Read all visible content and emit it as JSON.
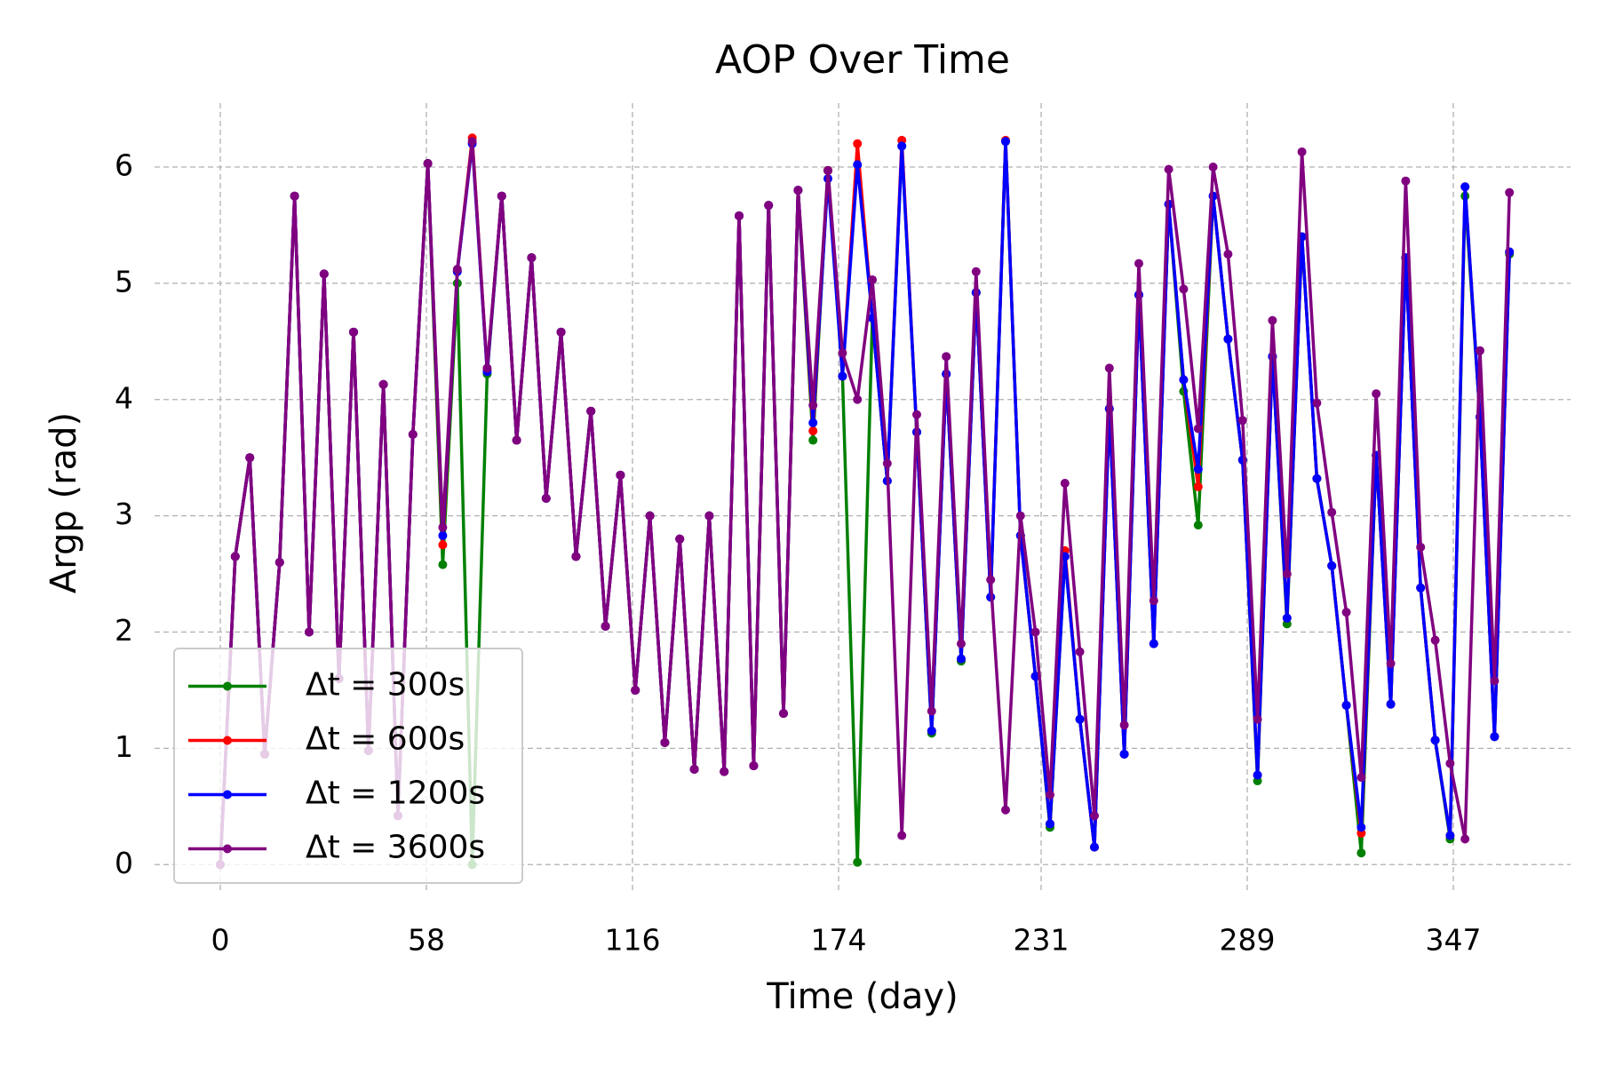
{
  "chart_data": {
    "type": "line",
    "title": "AOP Over Time",
    "xlabel": "Time (day)",
    "ylabel": "Argp (rad)",
    "x": [
      0,
      4.2,
      8.3,
      12.5,
      16.7,
      20.9,
      25.0,
      29.2,
      33.4,
      37.5,
      41.7,
      45.9,
      50.0,
      54.2,
      58.4,
      62.6,
      66.7,
      70.9,
      75.1,
      79.2,
      83.4,
      87.6,
      91.7,
      95.9,
      100.1,
      104.3,
      108.4,
      112.6,
      116.8,
      120.9,
      125.1,
      129.3,
      133.4,
      137.6,
      141.8,
      146.0,
      150.1,
      154.3,
      158.5,
      162.6,
      166.8,
      171.0,
      175.1,
      179.3,
      183.5,
      187.7,
      191.8,
      196.0,
      200.2,
      204.3,
      208.5,
      212.7,
      216.8,
      221.0,
      225.2,
      229.4,
      233.5,
      237.7,
      241.9,
      246.0,
      250.2,
      254.4,
      258.5,
      262.7,
      266.9,
      271.1,
      275.2,
      279.4,
      283.6,
      287.7,
      291.9,
      296.1,
      300.2,
      304.4,
      308.6,
      312.8,
      316.9,
      321.1,
      325.3,
      329.4,
      333.6,
      337.8,
      341.9,
      346.1,
      350.3,
      354.5,
      358.6,
      362.8
    ],
    "series": [
      {
        "name": "Δt = 300s",
        "color": "#008000",
        "values": [
          0,
          2.65,
          3.5,
          0.95,
          2.6,
          5.75,
          2.0,
          5.08,
          1.6,
          4.58,
          0.98,
          4.13,
          0.42,
          3.7,
          6.03,
          2.58,
          5.0,
          0.0,
          4.22,
          5.75,
          3.65,
          5.22,
          3.15,
          4.58,
          2.65,
          3.9,
          2.05,
          3.35,
          1.5,
          3.0,
          1.05,
          2.8,
          0.82,
          3.0,
          0.8,
          5.58,
          0.85,
          5.67,
          1.3,
          5.8,
          3.65,
          5.97,
          4.2,
          0.02,
          4.7,
          3.3,
          6.18,
          3.72,
          1.13,
          4.22,
          1.75,
          4.92,
          2.3,
          6.22,
          2.83,
          1.62,
          0.32,
          2.65,
          1.25,
          0.15,
          3.92,
          0.95,
          4.9,
          1.9,
          5.68,
          4.07,
          2.92,
          5.75,
          4.52,
          3.48,
          0.72,
          4.37,
          2.07,
          5.4,
          3.32,
          2.57,
          1.37,
          0.1,
          3.52,
          1.38,
          5.22,
          2.38,
          1.07,
          0.22,
          5.75,
          3.85,
          1.1,
          5.25
        ]
      },
      {
        "name": "Δt = 600s",
        "color": "#ff0000",
        "values": [
          0,
          2.65,
          3.5,
          0.95,
          2.6,
          5.75,
          2.0,
          5.08,
          1.6,
          4.58,
          0.98,
          4.13,
          0.42,
          3.7,
          6.03,
          2.75,
          5.1,
          6.25,
          4.25,
          5.75,
          3.65,
          5.22,
          3.15,
          4.58,
          2.65,
          3.9,
          2.05,
          3.35,
          1.5,
          3.0,
          1.05,
          2.8,
          0.82,
          3.0,
          0.8,
          5.58,
          0.85,
          5.67,
          1.3,
          5.8,
          3.73,
          5.97,
          4.2,
          6.2,
          4.7,
          3.3,
          6.23,
          3.72,
          1.15,
          4.22,
          1.77,
          4.92,
          2.3,
          6.23,
          2.83,
          1.62,
          0.35,
          2.7,
          1.25,
          0.15,
          3.92,
          0.95,
          4.9,
          1.9,
          5.68,
          4.17,
          3.25,
          5.75,
          4.52,
          3.48,
          0.77,
          4.37,
          2.12,
          5.4,
          3.32,
          2.57,
          1.37,
          0.27,
          3.52,
          1.38,
          5.22,
          2.38,
          1.07,
          0.25,
          5.83,
          3.85,
          1.1,
          5.27
        ]
      },
      {
        "name": "Δt = 1200s",
        "color": "#0000ff",
        "values": [
          0,
          2.65,
          3.5,
          0.95,
          2.6,
          5.75,
          2.0,
          5.08,
          1.6,
          4.58,
          0.98,
          4.13,
          0.42,
          3.7,
          6.03,
          2.83,
          5.1,
          6.2,
          4.24,
          5.75,
          3.65,
          5.22,
          3.15,
          4.58,
          2.65,
          3.9,
          2.05,
          3.35,
          1.5,
          3.0,
          1.05,
          2.8,
          0.82,
          3.0,
          0.8,
          5.58,
          0.85,
          5.67,
          1.3,
          5.8,
          3.8,
          5.9,
          4.2,
          6.02,
          4.7,
          3.3,
          6.18,
          3.72,
          1.15,
          4.22,
          1.77,
          4.92,
          2.3,
          6.22,
          2.83,
          1.62,
          0.35,
          2.65,
          1.25,
          0.15,
          3.92,
          0.95,
          4.9,
          1.9,
          5.68,
          4.17,
          3.4,
          5.75,
          4.52,
          3.48,
          0.77,
          4.37,
          2.12,
          5.4,
          3.32,
          2.57,
          1.37,
          0.32,
          3.52,
          1.38,
          5.22,
          2.38,
          1.07,
          0.25,
          5.83,
          3.85,
          1.1,
          5.27
        ]
      },
      {
        "name": "Δt = 3600s",
        "color": "#800080",
        "values": [
          0,
          2.65,
          3.5,
          0.95,
          2.6,
          5.75,
          2.0,
          5.08,
          1.6,
          4.58,
          0.98,
          4.13,
          0.42,
          3.7,
          6.03,
          2.9,
          5.12,
          6.22,
          4.27,
          5.75,
          3.65,
          5.22,
          3.15,
          4.58,
          2.65,
          3.9,
          2.05,
          3.35,
          1.5,
          3.0,
          1.05,
          2.8,
          0.82,
          3.0,
          0.8,
          5.58,
          0.85,
          5.67,
          1.3,
          5.8,
          3.95,
          5.97,
          4.4,
          4.0,
          5.03,
          3.45,
          0.25,
          3.87,
          1.32,
          4.37,
          1.9,
          5.1,
          2.45,
          0.47,
          3.0,
          2.0,
          0.6,
          3.28,
          1.83,
          0.42,
          4.27,
          1.2,
          5.17,
          2.27,
          5.98,
          4.95,
          3.75,
          6.0,
          5.25,
          3.82,
          1.25,
          4.68,
          2.5,
          6.13,
          3.97,
          3.03,
          2.17,
          0.75,
          4.05,
          1.73,
          5.88,
          2.73,
          1.93,
          0.87,
          0.22,
          4.42,
          1.58,
          5.78
        ]
      }
    ],
    "xlim": [
      -18.5,
      380
    ],
    "xticks": [
      0,
      58,
      116,
      174,
      231,
      289,
      347
    ],
    "ylim": [
      -0.25,
      6.55
    ],
    "yticks": [
      0,
      1,
      2,
      3,
      4,
      5,
      6
    ],
    "grid": true,
    "legend": "lower left"
  }
}
